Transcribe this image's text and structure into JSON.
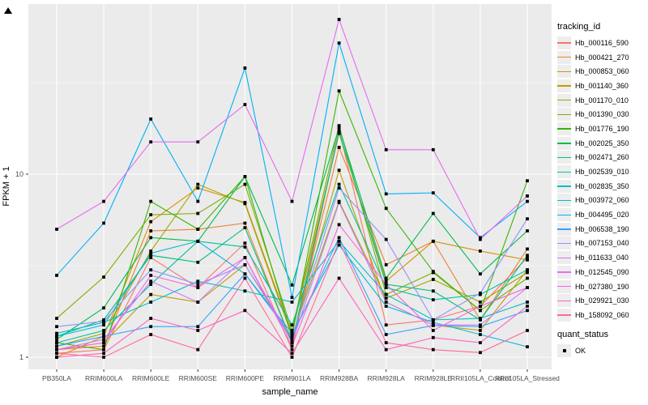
{
  "chart_data": {
    "type": "line",
    "xlabel": "sample_name",
    "ylabel": "FPKM + 1",
    "y_scale": "log10",
    "ylim": [
      0.87,
      85
    ],
    "grid": true,
    "legend_position": "right",
    "point_shape": "filled-square",
    "point_color": "#000000",
    "panel_bg": "#ebebeb",
    "grid_color": "#ffffff",
    "axis_text_color": "#4d4d4d",
    "yticks": [
      {
        "label": "1",
        "value": 1
      },
      {
        "label": "10",
        "value": 10
      }
    ],
    "minor_grid_values": [
      3.162,
      31.62
    ],
    "categories": [
      "PB350LA",
      "RRIM600LA",
      "RRIM600LE",
      "RRIM600SE",
      "RRIM600PE",
      "RRIM901LA",
      "RRIM928BA",
      "RRIM928LA",
      "RRIM928LE",
      "RRII105LA_Control",
      "RRII105LA_Stressed"
    ],
    "series": [
      {
        "name": "Hb_000116_590",
        "color": "#F8766D",
        "values": [
          1.05,
          1.1,
          3.5,
          2.4,
          4.2,
          1.1,
          17.5,
          1.5,
          1.6,
          1.9,
          3.5
        ]
      },
      {
        "name": "Hb_000421_270",
        "color": "#EA8331",
        "values": [
          1.1,
          1.15,
          4.9,
          5.0,
          5.4,
          1.2,
          14.0,
          3.2,
          4.3,
          1.6,
          3.9
        ]
      },
      {
        "name": "Hb_000853_060",
        "color": "#D89000",
        "values": [
          1.0,
          1.3,
          5.5,
          8.4,
          7.0,
          1.35,
          16.7,
          2.6,
          4.3,
          3.8,
          3.4
        ]
      },
      {
        "name": "Hb_001140_360",
        "color": "#C09B00",
        "values": [
          1.1,
          1.2,
          2.2,
          2.0,
          3.2,
          1.25,
          10.5,
          2.0,
          1.5,
          1.4,
          3.0
        ]
      },
      {
        "name": "Hb_001170_010",
        "color": "#A3A500",
        "values": [
          1.15,
          1.35,
          3.8,
          8.8,
          6.9,
          1.3,
          7.1,
          2.1,
          2.66,
          2.0,
          2.9
        ]
      },
      {
        "name": "Hb_001390_030",
        "color": "#7CAE00",
        "values": [
          1.63,
          2.74,
          6.0,
          6.1,
          8.8,
          1.4,
          18.4,
          2.2,
          2.9,
          1.8,
          2.7
        ]
      },
      {
        "name": "Hb_001776_190",
        "color": "#39B600",
        "values": [
          1.2,
          1.1,
          7.1,
          5.0,
          9.7,
          1.3,
          28.5,
          6.5,
          2.94,
          1.8,
          9.2
        ]
      },
      {
        "name": "Hb_002025_350",
        "color": "#00BB4E",
        "values": [
          1.25,
          1.86,
          4.5,
          4.3,
          9.7,
          2.48,
          18.0,
          2.7,
          6.1,
          2.85,
          4.9
        ]
      },
      {
        "name": "Hb_002471_260",
        "color": "#00BF7D",
        "values": [
          1.3,
          1.6,
          3.6,
          3.3,
          5.1,
          1.2,
          17.0,
          2.5,
          2.3,
          1.6,
          3.6
        ]
      },
      {
        "name": "Hb_002539_010",
        "color": "#00C1A3",
        "values": [
          1.2,
          1.4,
          2.5,
          4.3,
          4.0,
          1.5,
          8.8,
          2.4,
          2.06,
          2.2,
          3.0
        ]
      },
      {
        "name": "Hb_002835_350",
        "color": "#00BFC4",
        "values": [
          1.35,
          1.55,
          2.0,
          2.6,
          2.3,
          2.0,
          4.3,
          2.2,
          1.6,
          1.63,
          2.0
        ]
      },
      {
        "name": "Hb_003972_060",
        "color": "#00BAE0",
        "values": [
          1.3,
          1.5,
          3.7,
          4.3,
          2.85,
          1.35,
          4.1,
          1.9,
          1.55,
          1.33,
          1.14
        ]
      },
      {
        "name": "Hb_004495_020",
        "color": "#00B0F6",
        "values": [
          2.8,
          5.4,
          20.0,
          7.1,
          38.0,
          2.12,
          52.0,
          7.8,
          7.9,
          4.5,
          7.1
        ]
      },
      {
        "name": "Hb_006538_190",
        "color": "#35A2FF",
        "values": [
          1.15,
          1.3,
          1.47,
          1.47,
          2.85,
          1.3,
          4.5,
          1.33,
          1.49,
          1.47,
          1.8
        ]
      },
      {
        "name": "Hb_007153_040",
        "color": "#9590FF",
        "values": [
          1.47,
          1.57,
          3.0,
          2.5,
          3.2,
          1.28,
          8.4,
          4.4,
          1.6,
          2.24,
          5.7
        ]
      },
      {
        "name": "Hb_011633_040",
        "color": "#C77CFF",
        "values": [
          1.1,
          1.25,
          2.6,
          2.0,
          3.5,
          1.2,
          7.0,
          2.0,
          1.5,
          1.5,
          2.4
        ]
      },
      {
        "name": "Hb_012545_090",
        "color": "#E76BF3",
        "values": [
          5.0,
          7.1,
          15.0,
          15.0,
          24.0,
          7.1,
          70.0,
          13.6,
          13.6,
          4.4,
          7.6
        ]
      },
      {
        "name": "Hb_027380_190",
        "color": "#FA62DB",
        "values": [
          1.1,
          1.2,
          2.8,
          2.4,
          3.5,
          1.15,
          5.3,
          2.5,
          1.4,
          1.9,
          2.4
        ]
      },
      {
        "name": "Hb_029921_030",
        "color": "#FF62BC",
        "values": [
          1.0,
          1.05,
          1.63,
          1.4,
          1.8,
          1.05,
          2.7,
          1.1,
          1.28,
          1.2,
          1.9
        ]
      },
      {
        "name": "Hb_158092_060",
        "color": "#FF6A98",
        "values": [
          1.05,
          1.0,
          1.33,
          1.1,
          2.7,
          1.0,
          4.3,
          1.2,
          1.1,
          1.06,
          1.4
        ]
      }
    ]
  },
  "legend": {
    "tracking_title": "tracking_id",
    "quant_title": "quant_status",
    "quant_items": [
      {
        "label": "OK",
        "shape": "filled-square",
        "color": "#000000"
      }
    ]
  },
  "axes": {
    "x_title": "sample_name",
    "y_title": "FPKM + 1"
  }
}
